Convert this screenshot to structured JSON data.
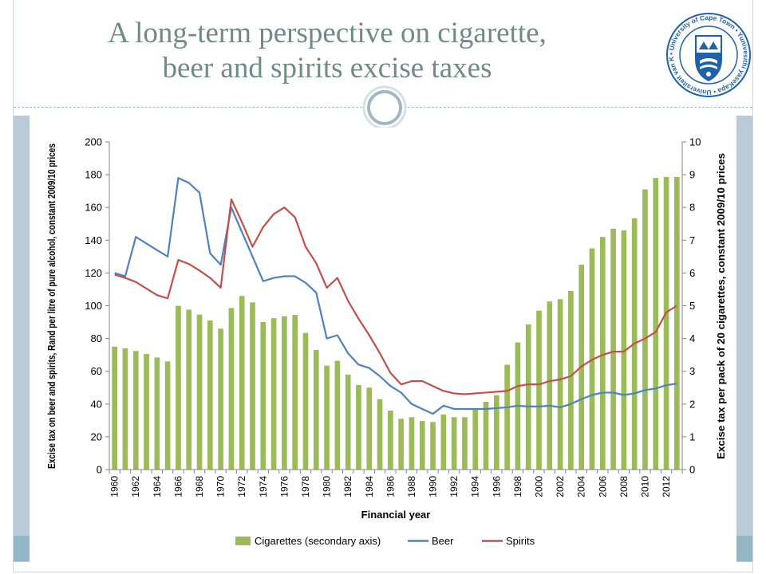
{
  "slide": {
    "title_line1": "A long-term perspective on cigarette,",
    "title_line2": "beer and spirits excise taxes",
    "logo_ring_text": "• University of Cape Town • Yunivesithi yaseKapa • Universiteit van Kaapstad"
  },
  "colors": {
    "title": "#6f8b84",
    "cigarettes": "#9bbb59",
    "beer": "#4f81bd",
    "spirits": "#c0504d",
    "logo_blue": "#1f62a8",
    "frame": "#b9cbd6",
    "band": "#94b6c4"
  },
  "chart_data": {
    "type": "bar+line",
    "xlabel": "Financial year",
    "ylabel_left": "Excise tax on beer and spirits, Rand per litre of pure alcohol, constant 2009/10 prices",
    "ylabel_right": "Excise tax per pack of 20 cigarettes, constant 2009/10 prices",
    "ylim_left": [
      0,
      200
    ],
    "ylim_right": [
      0,
      10
    ],
    "yticks_left": [
      "0",
      "20",
      "40",
      "60",
      "80",
      "100",
      "120",
      "140",
      "160",
      "180",
      "200"
    ],
    "yticks_right": [
      "0",
      "1",
      "2",
      "3",
      "4",
      "5",
      "6",
      "7",
      "8",
      "9",
      "10"
    ],
    "x": [
      1960,
      1961,
      1962,
      1963,
      1964,
      1965,
      1966,
      1967,
      1968,
      1969,
      1970,
      1971,
      1972,
      1973,
      1974,
      1975,
      1976,
      1977,
      1978,
      1979,
      1980,
      1981,
      1982,
      1983,
      1984,
      1985,
      1986,
      1987,
      1988,
      1989,
      1990,
      1991,
      1992,
      1993,
      1994,
      1995,
      1996,
      1997,
      1998,
      1999,
      2000,
      2001,
      2002,
      2003,
      2004,
      2005,
      2006,
      2007,
      2008,
      2009,
      2010,
      2011,
      2012,
      2013
    ],
    "xtick_labels": [
      "1960",
      "1962",
      "1964",
      "1966",
      "1968",
      "1970",
      "1972",
      "1974",
      "1976",
      "1978",
      "1980",
      "1982",
      "1984",
      "1986",
      "1988",
      "1990",
      "1992",
      "1994",
      "1996",
      "1998",
      "2000",
      "2002",
      "2004",
      "2006",
      "2008",
      "2010",
      "2012"
    ],
    "legend_position": "bottom",
    "grid": false,
    "series": [
      {
        "name": "Cigarettes (secondary axis)",
        "type": "bar",
        "axis": "right",
        "color": "#9bbb59",
        "values": [
          3.75,
          3.7,
          3.62,
          3.53,
          3.42,
          3.3,
          5.0,
          4.88,
          4.73,
          4.55,
          4.3,
          4.93,
          5.3,
          5.1,
          4.5,
          4.62,
          4.68,
          4.72,
          4.17,
          3.65,
          3.17,
          3.32,
          2.9,
          2.58,
          2.5,
          2.15,
          1.8,
          1.55,
          1.6,
          1.48,
          1.45,
          1.68,
          1.6,
          1.6,
          1.85,
          2.07,
          2.27,
          3.2,
          3.88,
          4.43,
          4.85,
          5.13,
          5.2,
          5.45,
          6.25,
          6.75,
          7.1,
          7.35,
          7.3,
          7.67,
          8.55,
          8.9,
          8.93,
          8.93
        ]
      },
      {
        "name": "Beer",
        "type": "line",
        "axis": "left",
        "color": "#4f81bd",
        "values": [
          120,
          118,
          142,
          138,
          134,
          130,
          178,
          175,
          169,
          132,
          125,
          160,
          145,
          130,
          115,
          117,
          118,
          118,
          114,
          108,
          80,
          82,
          71,
          64,
          62,
          57,
          51,
          47,
          40,
          37,
          34,
          39,
          37,
          37,
          37,
          37,
          37.5,
          38,
          39,
          38.5,
          38.5,
          39,
          38,
          40,
          43,
          45.5,
          47,
          47,
          45.5,
          46.5,
          48.5,
          49.5,
          51.5,
          52.5
        ]
      },
      {
        "name": "Spirits",
        "type": "line",
        "axis": "left",
        "color": "#c0504d",
        "values": [
          119,
          117,
          114.5,
          110.5,
          106.5,
          104.5,
          128,
          125.5,
          121.5,
          117,
          111,
          165,
          151,
          136,
          148,
          156,
          160,
          154,
          136,
          126,
          111,
          117,
          103,
          92,
          82,
          71,
          59,
          52,
          54,
          54,
          51,
          48,
          46.5,
          46,
          46.5,
          47,
          47.5,
          48,
          51,
          52,
          52,
          54,
          55,
          57,
          63,
          67,
          70,
          72,
          72,
          77,
          80,
          84,
          96,
          100
        ]
      }
    ]
  }
}
